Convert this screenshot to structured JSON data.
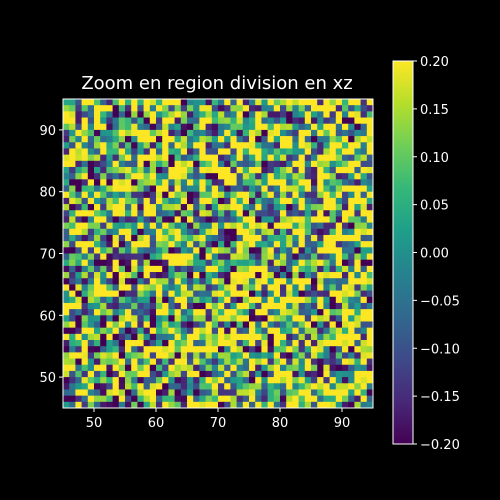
{
  "chart_data": {
    "type": "heatmap",
    "title": "Zoom en region division en xz",
    "xlabel": "",
    "ylabel": "",
    "xlim": [
      45,
      95
    ],
    "ylim": [
      45,
      95
    ],
    "x_ticks": [
      "50",
      "60",
      "70",
      "80",
      "90"
    ],
    "y_ticks": [
      "50",
      "60",
      "70",
      "80",
      "90"
    ],
    "grid_rows": 50,
    "grid_cols": 50,
    "grid": false,
    "colormap": "viridis",
    "colorbar": {
      "min": -0.2,
      "max": 0.2,
      "ticks": [
        "0.20",
        "0.15",
        "0.10",
        "0.05",
        "0.00",
        "−0.05",
        "−0.10",
        "−0.15",
        "−0.20"
      ]
    }
  },
  "colors": {
    "background": "#000000",
    "text": "#ffffff",
    "viridis": [
      "#440154",
      "#482878",
      "#3e4a89",
      "#31688e",
      "#26828e",
      "#1f9e89",
      "#35b779",
      "#6ece58",
      "#b5de2b",
      "#fde725"
    ]
  }
}
